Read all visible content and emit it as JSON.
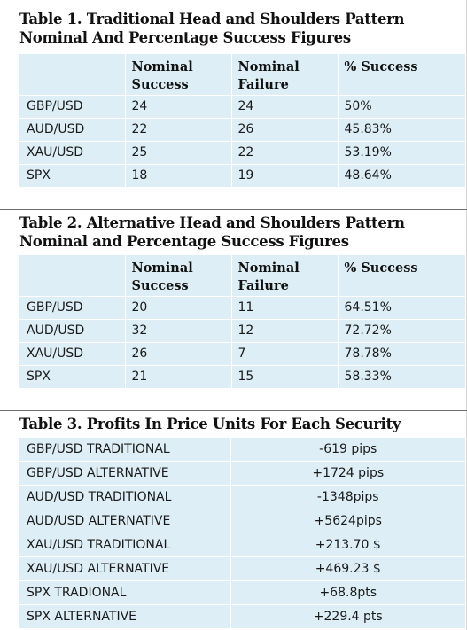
{
  "colors": {
    "row_fill": "#ddeef6",
    "title_text": "#111111",
    "separator": "#6d6d6d"
  },
  "tables": [
    {
      "title": "Table 1. Traditional Head and Shoulders Pattern Nominal And Percentage Success Figures",
      "headers": [
        "",
        "Nominal Success",
        "Nominal Failure",
        "% Success"
      ],
      "rows": [
        [
          "GBP/USD",
          "24",
          "24",
          "50%"
        ],
        [
          "AUD/USD",
          "22",
          "26",
          "45.83%"
        ],
        [
          "XAU/USD",
          "25",
          "22",
          "53.19%"
        ],
        [
          "SPX",
          "18",
          "19",
          "48.64%"
        ]
      ]
    },
    {
      "title": "Table 2. Alternative Head and Shoulders Pattern Nominal and Percentage Success Figures",
      "headers": [
        "",
        "Nominal Success",
        "Nominal Failure",
        "% Success"
      ],
      "rows": [
        [
          "GBP/USD",
          "20",
          "11",
          "64.51%"
        ],
        [
          "AUD/USD",
          "32",
          "12",
          "72.72%"
        ],
        [
          "XAU/USD",
          "26",
          "7",
          "78.78%"
        ],
        [
          "SPX",
          "21",
          "15",
          "58.33%"
        ]
      ]
    },
    {
      "title": "Table 3. Profits In Price Units For Each Security",
      "rows": [
        [
          "GBP/USD TRADITIONAL",
          "-619 pips"
        ],
        [
          "GBP/USD ALTERNATIVE",
          "+1724 pips"
        ],
        [
          "AUD/USD TRADITIONAL",
          "-1348pips"
        ],
        [
          "AUD/USD ALTERNATIVE",
          "+5624pips"
        ],
        [
          "XAU/USD TRADITIONAL",
          "+213.70 $"
        ],
        [
          "XAU/USD ALTERNATIVE",
          "+469.23 $"
        ],
        [
          "SPX TRADIONAL",
          "+68.8pts"
        ],
        [
          "SPX ALTERNATIVE",
          "+229.4 pts"
        ]
      ]
    }
  ]
}
